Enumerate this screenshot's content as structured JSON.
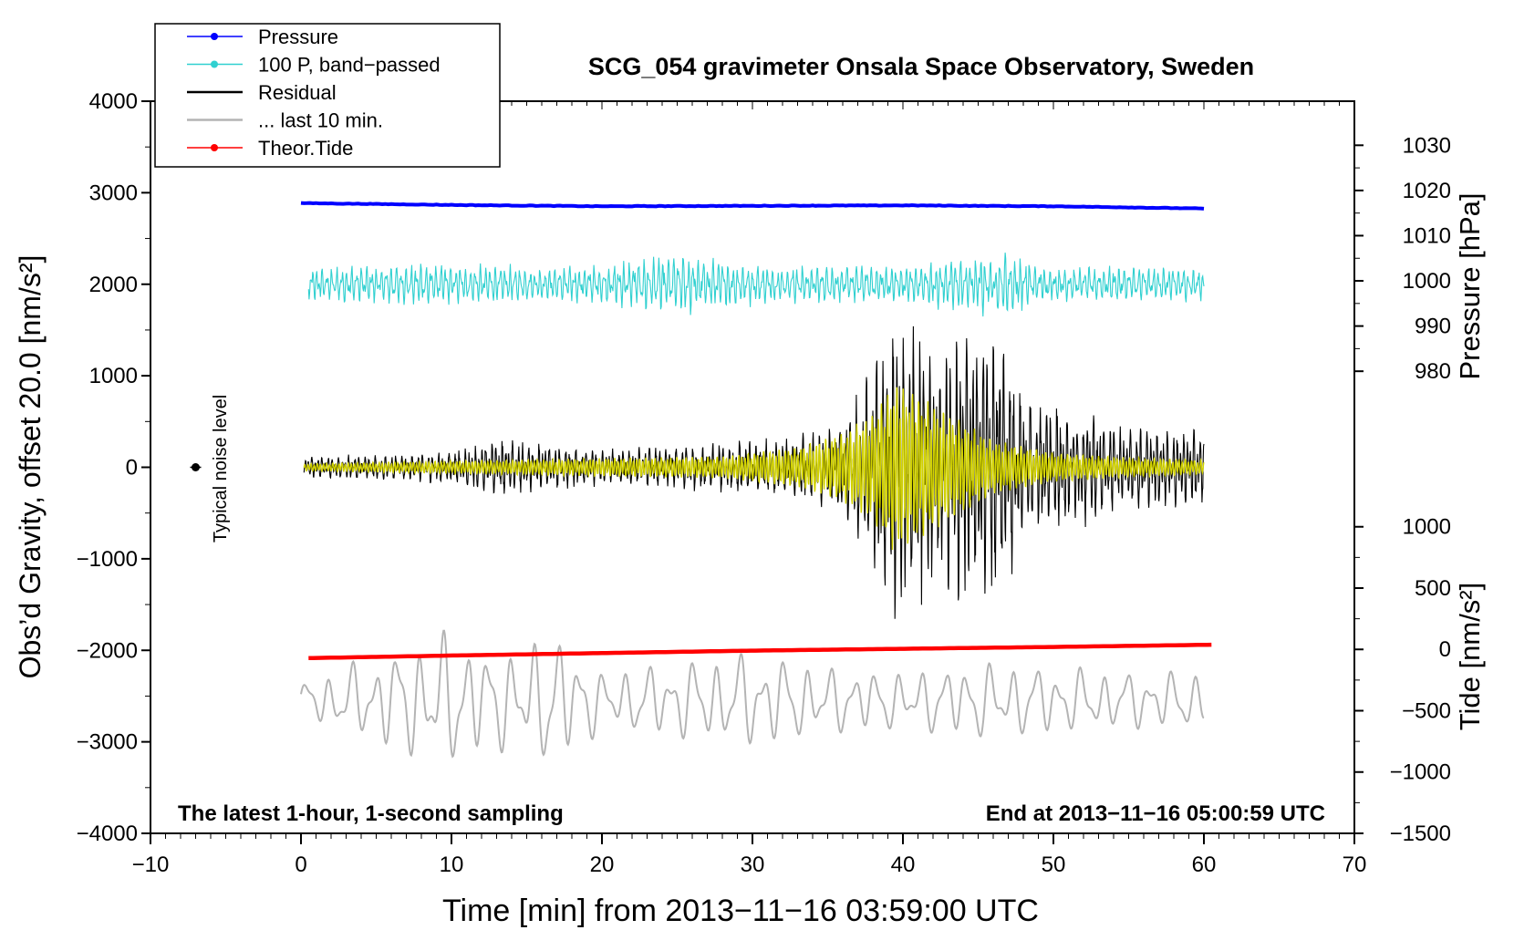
{
  "chart_data": {
    "type": "line",
    "title": "SCG_054 gravimeter Onsala Space Observatory, Sweden",
    "xlabel": "Time [min] from 2013−11−16 03:59:00 UTC",
    "ylabel": "Obs’d Gravity, offset 20.0 [nm/s²]",
    "ylabel_right_top": "Pressure [hPa]",
    "ylabel_right_bottom": "Tide [nm/s²]",
    "xlim": [
      -10,
      70
    ],
    "ylim": [
      -4000,
      4000
    ],
    "pressure_ylim_hpa": [
      1019.5,
      979.0
    ],
    "pressure_ylim_gravity": [
      3000,
      1000
    ],
    "tide_ylim_nms2": [
      1000,
      -1500
    ],
    "tide_ylim_gravity": [
      -650,
      -4000
    ],
    "x_ticks": [
      -10,
      0,
      10,
      20,
      30,
      40,
      50,
      60,
      70
    ],
    "x_tick_labels": [
      "−10",
      "0",
      "10",
      "20",
      "30",
      "40",
      "50",
      "60",
      "70"
    ],
    "y_ticks": [
      4000,
      3000,
      2000,
      1000,
      0,
      -1000,
      -2000,
      -3000,
      -4000
    ],
    "y_tick_labels": [
      "4000",
      "3000",
      "2000",
      "1000",
      "0",
      "−1000",
      "−2000",
      "−3000",
      "−4000"
    ],
    "pressure_ticks": [
      1030,
      1020,
      1010,
      1000,
      990,
      980
    ],
    "pressure_tick_labels": [
      "1030",
      "1020",
      "1010",
      "1000",
      "990",
      "980"
    ],
    "tide_ticks": [
      1000,
      500,
      0,
      -500,
      -1000,
      -1500
    ],
    "tide_tick_labels": [
      "1000",
      "500",
      "0",
      "−500",
      "−1000",
      "−1500"
    ],
    "legend_position": "top-left",
    "legend": [
      {
        "label": "Pressure",
        "color": "#0000ff",
        "marker": true
      },
      {
        "label": "100 P, band−passed",
        "color": "#30d0d0",
        "marker": true
      },
      {
        "label": "Residual",
        "color": "#000000",
        "marker": false
      },
      {
        "label": "... last 10 min.",
        "color": "#b4b4b4",
        "marker": false
      },
      {
        "label": "Theor.Tide",
        "color": "#ff0000",
        "marker": true
      }
    ],
    "annotations": {
      "noise_label": "Typical noise level",
      "noise_x": -7.0,
      "noise_y": 0,
      "bottom_left": "The latest 1-hour, 1-second sampling",
      "bottom_right": "End at 2013−11−16 05:00:59 UTC"
    },
    "series": {
      "pressure": {
        "color": "#0000ff",
        "x": [
          0,
          10,
          20,
          30,
          40,
          50,
          60
        ],
        "values_hpa": [
          1017.2,
          1016.8,
          1016.5,
          1016.6,
          1016.7,
          1016.5,
          1016.0
        ]
      },
      "tide": {
        "color": "#ff0000",
        "x": [
          0,
          10,
          20,
          30,
          40,
          50,
          60.5
        ],
        "values_nms2": [
          -72,
          -50,
          -30,
          -10,
          5,
          20,
          38
        ]
      },
      "band_passed": {
        "color": "#30d0d0",
        "x_start": 0.5,
        "x_end": 60.0,
        "center": 2000,
        "amplitude_band": 250,
        "envelope_x": [
          0,
          10,
          15,
          20,
          25,
          30,
          40,
          47,
          50,
          55,
          60
        ],
        "envelope": [
          180,
          220,
          170,
          190,
          330,
          200,
          190,
          330,
          170,
          180,
          160
        ]
      },
      "residual": {
        "color": "#000000",
        "x_start": 0.2,
        "x_end": 60.0,
        "envelope_x": [
          0,
          5,
          10,
          13,
          20,
          27,
          33,
          36,
          38,
          39.5,
          42,
          44,
          46,
          48,
          52,
          55,
          60
        ],
        "envelope": [
          120,
          130,
          170,
          300,
          190,
          250,
          340,
          480,
          1150,
          1750,
          1250,
          1450,
          1550,
          800,
          600,
          450,
          380
        ]
      },
      "residual_bandpassed": {
        "color": "#d2d200",
        "x_start": 0.2,
        "x_end": 60.0,
        "envelope_x": [
          0,
          10,
          20,
          28,
          33,
          36,
          38,
          39.5,
          42,
          44,
          46,
          50,
          55,
          60
        ],
        "envelope": [
          40,
          70,
          100,
          120,
          220,
          380,
          600,
          950,
          700,
          500,
          300,
          160,
          110,
          80
        ]
      },
      "last_10_min": {
        "color": "#b4b4b4",
        "x_start": 0,
        "x_end": 60,
        "center": -2550,
        "envelope_x": [
          0,
          5,
          9,
          10,
          13,
          17,
          20,
          25,
          30,
          35,
          40,
          45,
          50,
          55,
          60
        ],
        "envelope": [
          200,
          450,
          700,
          700,
          500,
          700,
          300,
          400,
          500,
          350,
          300,
          400,
          350,
          300,
          300
        ]
      }
    }
  }
}
